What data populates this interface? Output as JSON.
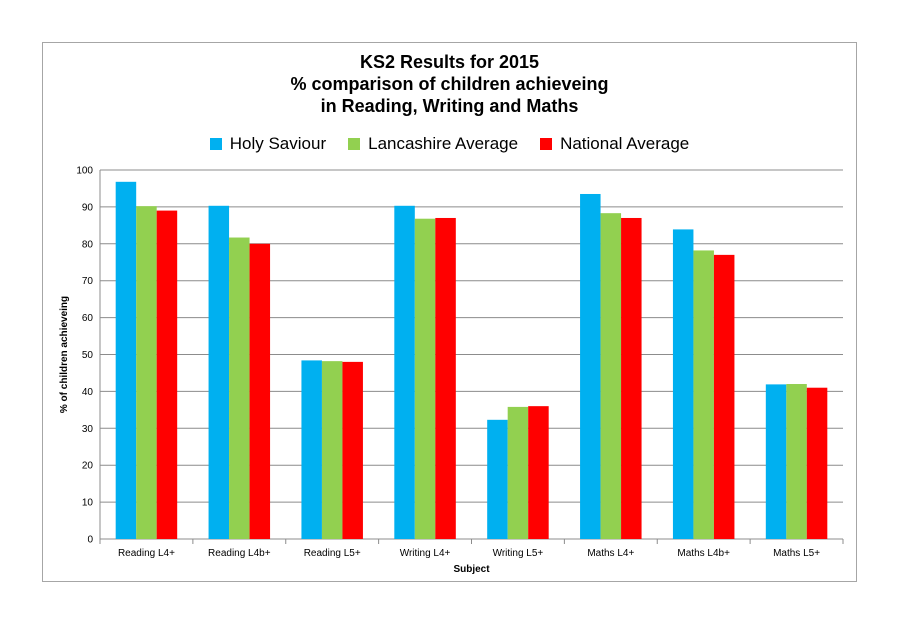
{
  "chart_data": {
    "type": "bar",
    "title": [
      "KS2 Results for 2015",
      "% comparison of children achieveing",
      "in Reading, Writing and Maths"
    ],
    "xlabel": "Subject",
    "ylabel": "% of children achieveing",
    "ylim": [
      0,
      100
    ],
    "yticks": [
      "0",
      "10",
      "20",
      "30",
      "40",
      "50",
      "60",
      "70",
      "80",
      "90",
      "100"
    ],
    "grid": true,
    "legend_position": "top",
    "categories": [
      "Reading L4+",
      "Reading L4b+",
      "Reading L5+",
      "Writing L4+",
      "Writing L5+",
      "Maths L4+",
      "Maths L4b+",
      "Maths L5+"
    ],
    "series": [
      {
        "name": "Holy Saviour",
        "color": "#00b0f0",
        "values": [
          96.8,
          90.3,
          48.4,
          90.3,
          32.3,
          93.5,
          83.9,
          41.9
        ]
      },
      {
        "name": "Lancashire Average",
        "color": "#92d050",
        "values": [
          90.2,
          81.7,
          48.2,
          86.8,
          35.8,
          88.3,
          78.2,
          42.0
        ]
      },
      {
        "name": "National Average",
        "color": "#ff0000",
        "values": [
          89,
          80,
          48,
          87,
          36,
          87,
          77,
          41
        ]
      }
    ]
  }
}
